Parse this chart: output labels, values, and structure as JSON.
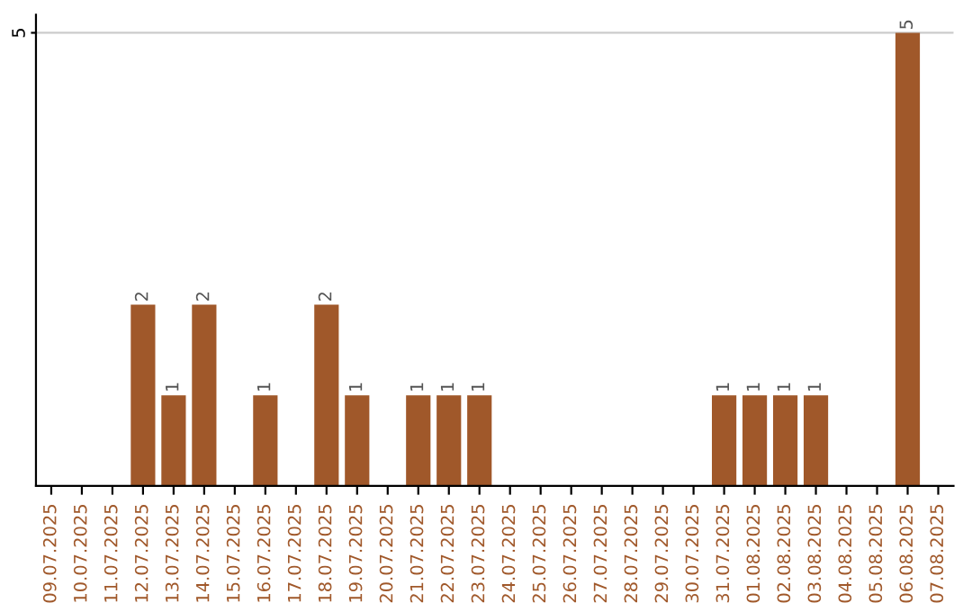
{
  "chart_data": {
    "type": "bar",
    "categories": [
      "09.07.2025",
      "10.07.2025",
      "11.07.2025",
      "12.07.2025",
      "13.07.2025",
      "14.07.2025",
      "15.07.2025",
      "16.07.2025",
      "17.07.2025",
      "18.07.2025",
      "19.07.2025",
      "20.07.2025",
      "21.07.2025",
      "22.07.2025",
      "23.07.2025",
      "24.07.2025",
      "25.07.2025",
      "26.07.2025",
      "27.07.2025",
      "28.07.2025",
      "29.07.2025",
      "30.07.2025",
      "31.07.2025",
      "01.08.2025",
      "02.08.2025",
      "03.08.2025",
      "04.08.2025",
      "05.08.2025",
      "06.08.2025",
      "07.08.2025"
    ],
    "values": [
      0,
      0,
      0,
      2,
      1,
      2,
      0,
      1,
      0,
      2,
      1,
      0,
      1,
      1,
      1,
      0,
      0,
      0,
      0,
      0,
      0,
      0,
      1,
      1,
      1,
      1,
      0,
      0,
      5,
      0
    ],
    "value_labels": [
      null,
      null,
      null,
      "2",
      "1",
      "2",
      null,
      "1",
      null,
      "2",
      "1",
      null,
      "1",
      "1",
      "1",
      null,
      null,
      null,
      null,
      null,
      null,
      null,
      "1",
      "1",
      "1",
      "1",
      null,
      null,
      "5",
      null
    ],
    "color": "#a0582a",
    "ylim": [
      0,
      5.2
    ],
    "yticks": [
      5
    ],
    "grid": "y"
  }
}
